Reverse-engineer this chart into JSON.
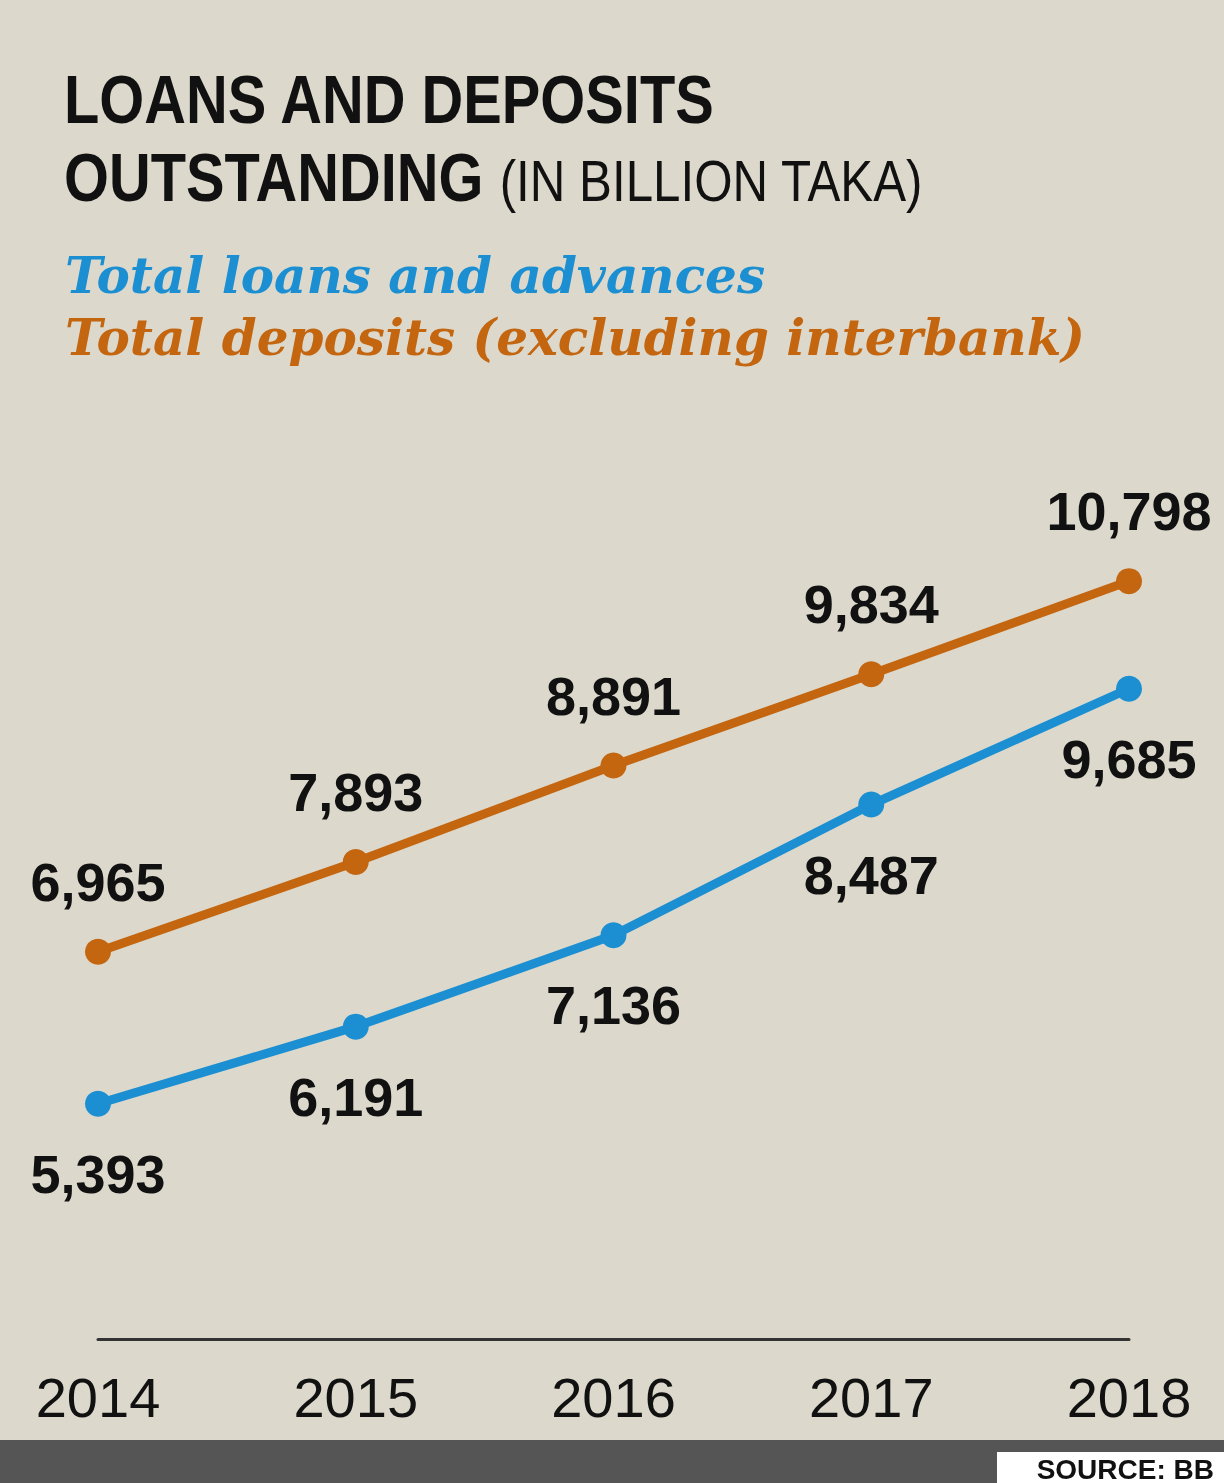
{
  "chart_data": {
    "type": "line",
    "title": "LOANS AND DEPOSITS OUTSTANDING",
    "subtitle": "(IN BILLION TAKA)",
    "categories": [
      "2014",
      "2015",
      "2016",
      "2017",
      "2018"
    ],
    "series": [
      {
        "name": "Total loans and advances",
        "color": "#1b8fd2",
        "values": [
          5393,
          6191,
          7136,
          8487,
          9685
        ],
        "value_labels": [
          "5,393",
          "6,191",
          "7,136",
          "8,487",
          "9,685"
        ]
      },
      {
        "name": "Total deposits (excluding interbank)",
        "color": "#c4650f",
        "values": [
          6965,
          7893,
          8891,
          9834,
          10798
        ],
        "value_labels": [
          "6,965",
          "7,893",
          "8,891",
          "9,834",
          "10,798"
        ]
      }
    ],
    "marker": "circle",
    "line_style": "solid",
    "grid": false,
    "legend": "top left",
    "tick_labels": "x",
    "annotations": [
      "SOURCE: BB"
    ]
  }
}
